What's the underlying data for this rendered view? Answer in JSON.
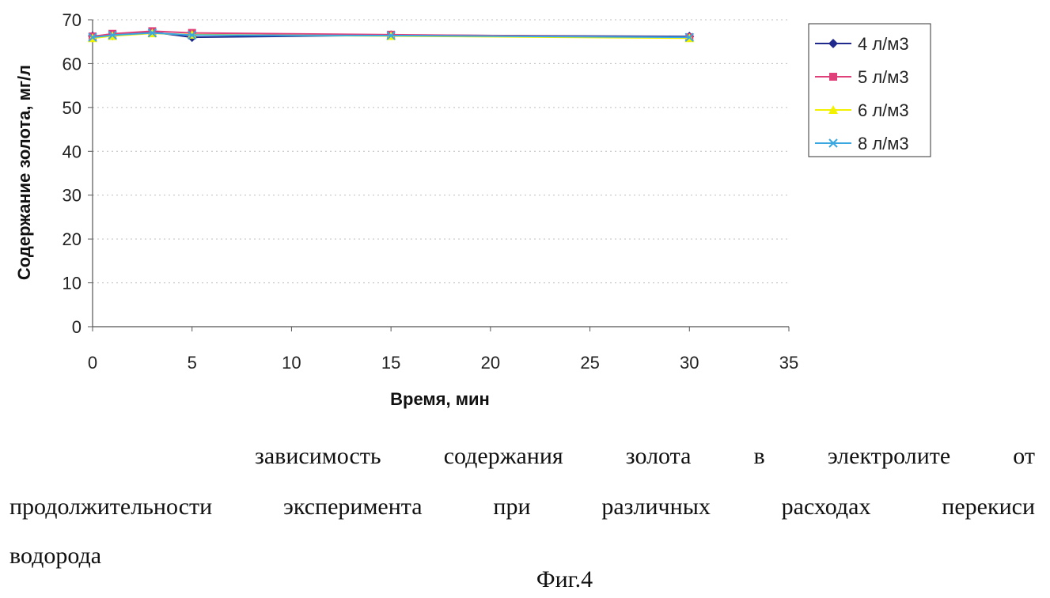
{
  "chart_data": {
    "type": "line",
    "xlabel": "Время, мин",
    "ylabel": "Содержание золота, мг/л",
    "xlim": [
      0,
      35
    ],
    "ylim": [
      0,
      70
    ],
    "xticks": [
      "0",
      "5",
      "10",
      "15",
      "20",
      "25",
      "30",
      "35"
    ],
    "yticks": [
      "0",
      "10",
      "20",
      "30",
      "40",
      "50",
      "60",
      "70"
    ],
    "grid": "horizontal-dotted",
    "legend_position": "top-right",
    "series": [
      {
        "name": "4 л/м3",
        "color": "#1f2a8c",
        "marker": "diamond",
        "x": [
          0,
          1,
          3,
          5,
          15,
          30
        ],
        "y": [
          66.3,
          66.4,
          67.2,
          66.0,
          66.5,
          66.2
        ]
      },
      {
        "name": "5 л/м3",
        "color": "#e0407a",
        "marker": "square",
        "x": [
          0,
          1,
          3,
          5,
          15,
          30
        ],
        "y": [
          66.2,
          66.8,
          67.4,
          67.0,
          66.6,
          66.0
        ]
      },
      {
        "name": "6 л/м3",
        "color": "#f2f200",
        "marker": "triangle",
        "x": [
          0,
          1,
          3,
          5,
          15,
          30
        ],
        "y": [
          65.8,
          66.3,
          66.9,
          66.6,
          66.3,
          65.8
        ]
      },
      {
        "name": "8 л/м3",
        "color": "#3aa7e0",
        "marker": "x",
        "x": [
          0,
          1,
          3,
          5,
          15,
          30
        ],
        "y": [
          66.0,
          66.5,
          67.0,
          66.5,
          66.4,
          66.0
        ]
      }
    ]
  },
  "caption": {
    "line1": "зависимость содержания золота в электролите от",
    "line2": "продолжительности эксперимента при различных расходах перекиси",
    "line3": "водорода"
  },
  "figure_label": "Фиг.4"
}
